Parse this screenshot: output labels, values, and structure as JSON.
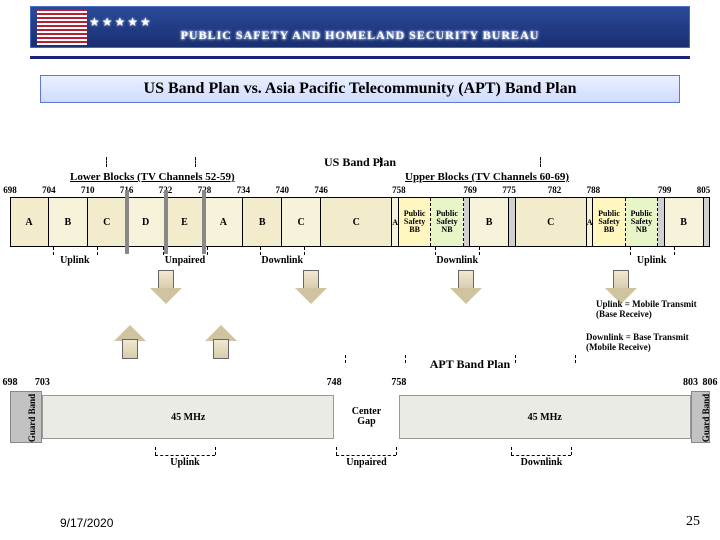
{
  "banner_title": "PUBLIC SAFETY AND HOMELAND SECURITY BUREAU",
  "slide_title": "US Band Plan vs. Asia Pacific Telecommunity (APT) Band Plan",
  "footer_date": "9/17/2020",
  "footer_page": "25",
  "legend": {
    "uplink": "Uplink = Mobile Transmit (Base Receive)",
    "downlink": "Downlink = Base Transmit (Mobile Receive)"
  },
  "us": {
    "title": "US Band Plan",
    "lower_group": "Lower Blocks  (TV Channels 52-59)",
    "upper_group": "Upper Blocks  (TV Channels 60-69)",
    "range": [
      698,
      806
    ],
    "mhz_ticks": [
      698,
      704,
      710,
      716,
      722,
      728,
      734,
      740,
      746,
      758,
      769,
      775,
      782,
      788,
      799,
      805
    ],
    "blocks": [
      {
        "from": 698,
        "to": 704,
        "label": "A",
        "color": "#f2eccd"
      },
      {
        "from": 704,
        "to": 710,
        "label": "B",
        "color": "#f7f3da"
      },
      {
        "from": 710,
        "to": 716,
        "label": "C",
        "color": "#f2eccd"
      },
      {
        "from": 716,
        "to": 722,
        "label": "D",
        "color": "#f7f3da"
      },
      {
        "from": 722,
        "to": 728,
        "label": "E",
        "color": "#f2eccd"
      },
      {
        "from": 728,
        "to": 734,
        "label": "A",
        "color": "#f7f3da"
      },
      {
        "from": 734,
        "to": 740,
        "label": "B",
        "color": "#f2eccd"
      },
      {
        "from": 740,
        "to": 746,
        "label": "C",
        "color": "#f7f3da"
      },
      {
        "from": 746,
        "to": 757,
        "label": "C",
        "color": "#f2eccd"
      },
      {
        "from": 757,
        "to": 758,
        "label": "A",
        "color": "#f7f3da",
        "small": true
      },
      {
        "from": 758,
        "to": 763,
        "label": "Public Safety BB",
        "color": "#fff7bf",
        "sep": true
      },
      {
        "from": 763,
        "to": 768,
        "label": "Public Safety NB",
        "color": "#e8f5c8",
        "sep": true
      },
      {
        "from": 768,
        "to": 769,
        "label": "",
        "color": "#d0d0d0"
      },
      {
        "from": 769,
        "to": 775,
        "label": "B",
        "color": "#f7f3da"
      },
      {
        "from": 775,
        "to": 776,
        "label": "",
        "color": "#d0d0d0"
      },
      {
        "from": 776,
        "to": 787,
        "label": "C",
        "color": "#f2eccd"
      },
      {
        "from": 787,
        "to": 788,
        "label": "A",
        "color": "#f7f3da",
        "small": true
      },
      {
        "from": 788,
        "to": 793,
        "label": "Public Safety BB",
        "color": "#fff7bf",
        "sep": true
      },
      {
        "from": 793,
        "to": 798,
        "label": "Public Safety NB",
        "color": "#e8f5c8",
        "sep": true
      },
      {
        "from": 798,
        "to": 799,
        "label": "",
        "color": "#d0d0d0"
      },
      {
        "from": 799,
        "to": 805,
        "label": "B",
        "color": "#f7f3da"
      },
      {
        "from": 805,
        "to": 806,
        "label": "",
        "color": "#d0d0d0"
      }
    ],
    "guard_ticks": [
      716,
      722,
      728
    ],
    "brackets": [
      {
        "mid": 708,
        "label": "Uplink"
      },
      {
        "mid": 725,
        "label": "Unpaired"
      },
      {
        "mid": 740,
        "label": "Downlink"
      },
      {
        "mid": 767,
        "label": "Downlink"
      },
      {
        "mid": 797,
        "label": "Uplink"
      }
    ]
  },
  "apt": {
    "title": "APT Band Plan",
    "mhz_ticks": [
      698,
      703,
      748,
      758,
      803,
      806
    ],
    "range": [
      698,
      806
    ],
    "blocks": [
      {
        "from": 698,
        "to": 703,
        "type": "guard",
        "label": "Guard Band"
      },
      {
        "from": 703,
        "to": 748,
        "type": "block",
        "label": "45 MHz"
      },
      {
        "from": 748,
        "to": 758,
        "type": "gap",
        "label": "Center Gap"
      },
      {
        "from": 758,
        "to": 803,
        "type": "block",
        "label": "45 MHz"
      },
      {
        "from": 803,
        "to": 806,
        "type": "guard",
        "label": "Guard Band"
      }
    ],
    "brackets": [
      {
        "mid": 725,
        "label": "Uplink",
        "dir": "up"
      },
      {
        "mid": 753,
        "label": "Unpaired",
        "dir": "up"
      },
      {
        "mid": 780,
        "label": "Downlink",
        "dir": "up"
      }
    ],
    "arrows_up": [
      {
        "at": 104
      },
      {
        "at": 195
      }
    ]
  },
  "arrows_down": [
    {
      "at": 140
    },
    {
      "at": 285
    },
    {
      "at": 440
    },
    {
      "at": 595
    }
  ]
}
